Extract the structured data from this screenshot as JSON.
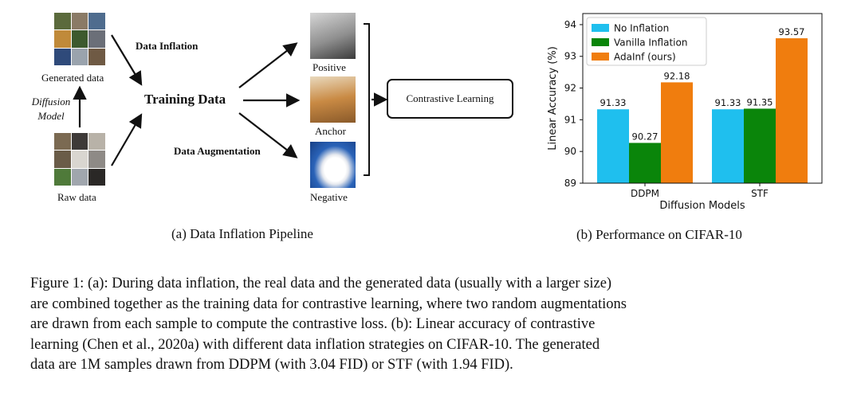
{
  "pipeline": {
    "generated_label": "Generated data",
    "diffusion_label_1": "Diffusion",
    "diffusion_label_2": "Model",
    "raw_label": "Raw data",
    "data_inflation": "Data Inflation",
    "training_data": "Training Data",
    "data_augmentation": "Data Augmentation",
    "positive": "Positive",
    "anchor": "Anchor",
    "negative": "Negative",
    "contrastive": "Contrastive Learning",
    "subcaption": "(a)  Data Inflation Pipeline"
  },
  "chart_subcaption": "(b)  Performance on CIFAR-10",
  "colors": {
    "no_inflation": "#1fbfee",
    "vanilla": "#0a850a",
    "adainf": "#f07d0e"
  },
  "chart_data": {
    "type": "bar",
    "categories": [
      "DDPM",
      "STF"
    ],
    "series": [
      {
        "name": "No Inflation",
        "values": [
          91.33,
          91.33
        ]
      },
      {
        "name": "Vanilla Inflation",
        "values": [
          90.27,
          91.35
        ]
      },
      {
        "name": "AdaInf (ours)",
        "values": [
          92.18,
          93.57
        ]
      }
    ],
    "data_labels": [
      [
        "91.33",
        "90.27",
        "92.18"
      ],
      [
        "91.33",
        "91.35",
        "93.57"
      ]
    ],
    "xlabel": "Diffusion Models",
    "ylabel": "Linear Accuracy (%)",
    "ylim": [
      89,
      94.35
    ],
    "yticks": [
      "89",
      "90",
      "91",
      "92",
      "93",
      "94"
    ],
    "legend": "top-left",
    "grid": false
  },
  "figure_caption": [
    "Figure 1: (a): During data inflation, the real data and the generated data (usually with a larger size)",
    "are combined together as the training data for contrastive learning, where two random augmentations",
    "are drawn from each sample to compute the contrastive loss.  (b):  Linear accuracy of contrastive",
    "learning (Chen et al., 2020a) with different data inflation strategies on CIFAR-10.  The generated",
    "data are 1M samples drawn from DDPM (with 3.04 FID) or STF (with 1.94 FID)."
  ]
}
